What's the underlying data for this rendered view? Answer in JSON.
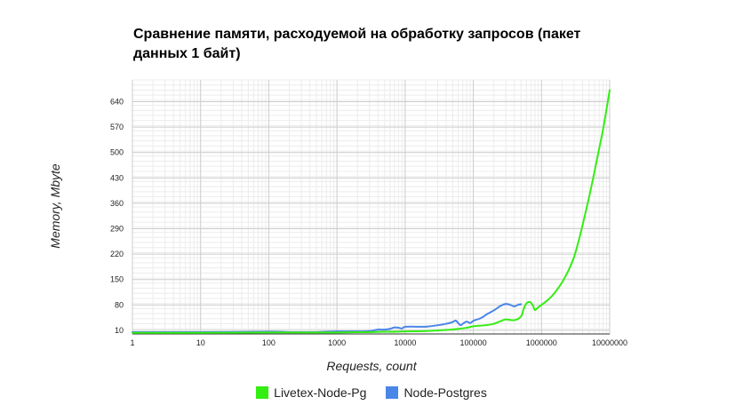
{
  "chart_data": {
    "type": "line",
    "title": "Сравнение памяти, расходуемой на обработку запросов (пакет данных 1 байт)",
    "xlabel": "Requests, count",
    "ylabel": "Memory, Mbyte",
    "x_scale": "log",
    "xlim": [
      1,
      10000000
    ],
    "ylim": [
      0,
      700
    ],
    "x_ticks": [
      "1",
      "10",
      "100",
      "1000",
      "10000",
      "100000",
      "1000000",
      "10000000"
    ],
    "y_ticks": [
      "10",
      "80",
      "150",
      "220",
      "290",
      "360",
      "430",
      "500",
      "570",
      "640"
    ],
    "grid": true,
    "legend_position": "bottom",
    "series": [
      {
        "name": "Livetex-Node-Pg",
        "color": "#33ee11",
        "points": [
          [
            1,
            3
          ],
          [
            10,
            3
          ],
          [
            100,
            4
          ],
          [
            500,
            4
          ],
          [
            1000,
            4
          ],
          [
            2000,
            5
          ],
          [
            3000,
            5
          ],
          [
            5000,
            6
          ],
          [
            7000,
            6
          ],
          [
            10000,
            7
          ],
          [
            20000,
            8
          ],
          [
            40000,
            11
          ],
          [
            60000,
            14
          ],
          [
            80000,
            17
          ],
          [
            100000,
            21
          ],
          [
            150000,
            24
          ],
          [
            200000,
            28
          ],
          [
            250000,
            35
          ],
          [
            300000,
            40
          ],
          [
            400000,
            38
          ],
          [
            500000,
            48
          ],
          [
            550000,
            70
          ],
          [
            600000,
            84
          ],
          [
            680000,
            88
          ],
          [
            750000,
            78
          ],
          [
            800000,
            66
          ],
          [
            900000,
            74
          ],
          [
            1000000,
            80
          ],
          [
            1300000,
            97
          ],
          [
            1600000,
            116
          ],
          [
            2000000,
            142
          ],
          [
            2500000,
            176
          ],
          [
            3000000,
            212
          ],
          [
            3500000,
            256
          ],
          [
            4000000,
            300
          ],
          [
            5000000,
            378
          ],
          [
            6000000,
            448
          ],
          [
            7000000,
            510
          ],
          [
            8000000,
            564
          ],
          [
            9000000,
            620
          ],
          [
            10000000,
            672
          ]
        ]
      },
      {
        "name": "Node-Postgres",
        "color": "#4a86e8",
        "points": [
          [
            1,
            5
          ],
          [
            10,
            5
          ],
          [
            100,
            6
          ],
          [
            200,
            5
          ],
          [
            500,
            5
          ],
          [
            1000,
            7
          ],
          [
            2000,
            7
          ],
          [
            3000,
            8
          ],
          [
            4000,
            12
          ],
          [
            5000,
            12
          ],
          [
            6000,
            14
          ],
          [
            7000,
            18
          ],
          [
            8000,
            17
          ],
          [
            9000,
            15
          ],
          [
            10000,
            20
          ],
          [
            15000,
            20
          ],
          [
            20000,
            20
          ],
          [
            30000,
            24
          ],
          [
            40000,
            28
          ],
          [
            50000,
            33
          ],
          [
            55000,
            37
          ],
          [
            60000,
            30
          ],
          [
            65000,
            24
          ],
          [
            70000,
            28
          ],
          [
            80000,
            34
          ],
          [
            90000,
            30
          ],
          [
            100000,
            36
          ],
          [
            130000,
            44
          ],
          [
            160000,
            55
          ],
          [
            200000,
            65
          ],
          [
            250000,
            77
          ],
          [
            300000,
            83
          ],
          [
            350000,
            80
          ],
          [
            400000,
            76
          ],
          [
            450000,
            80
          ],
          [
            500000,
            82
          ]
        ]
      }
    ]
  }
}
